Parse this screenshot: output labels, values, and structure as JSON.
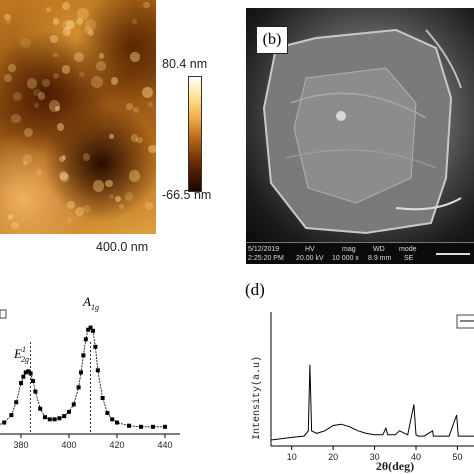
{
  "panel_a": {
    "scale_bar_label": "400.0 nm",
    "colorbar": {
      "max_label": "80.4 nm",
      "min_label": "-66.5 nm"
    }
  },
  "panel_b": {
    "label": "(b)",
    "info": {
      "date": "5/12/2019",
      "time": "2:25:20 PM",
      "hv_header": "HV",
      "hv_value": "20.00 kV",
      "mag_header": "mag",
      "mag_value": "10 000 x",
      "wd_header": "WD",
      "wd_value": "8.9 mm",
      "mode_header": "mode",
      "mode_value": "SE"
    }
  },
  "panel_c": {
    "peak_label_1": "E",
    "peak_label_1_sup": "1",
    "peak_label_1_sub": "2g",
    "peak_label_2": "A",
    "peak_label_2_sub": "1g",
    "x_tick_labels": [
      "380",
      "400",
      "420",
      "440"
    ]
  },
  "panel_d": {
    "label": "(d)",
    "ylabel": "Intensity(a.u)",
    "xlabel": "2θ(deg)",
    "x_tick_labels": [
      "10",
      "20",
      "30",
      "40",
      "50"
    ]
  },
  "chart_data": [
    {
      "type": "line",
      "panel": "c",
      "x": [
        370,
        373,
        376,
        378,
        380,
        381,
        382,
        383,
        384,
        385,
        386,
        388,
        390,
        392,
        394,
        396,
        398,
        400,
        402,
        404,
        405,
        406,
        407,
        408,
        409,
        410,
        411,
        412,
        414,
        416,
        418,
        420,
        425,
        430,
        435,
        440
      ],
      "values": [
        0.04,
        0.07,
        0.14,
        0.26,
        0.44,
        0.5,
        0.54,
        0.55,
        0.53,
        0.46,
        0.36,
        0.2,
        0.12,
        0.1,
        0.1,
        0.11,
        0.13,
        0.17,
        0.24,
        0.4,
        0.54,
        0.7,
        0.85,
        0.94,
        0.96,
        0.93,
        0.78,
        0.56,
        0.3,
        0.16,
        0.1,
        0.07,
        0.04,
        0.03,
        0.03,
        0.03
      ],
      "xlim": [
        370,
        445
      ],
      "ylim": [
        0,
        1.05
      ],
      "markers": [
        384,
        409
      ]
    },
    {
      "type": "line",
      "panel": "d",
      "x": [
        5,
        10,
        13,
        14,
        14.4,
        14.8,
        16,
        18,
        20,
        22,
        24,
        26,
        28,
        30,
        32,
        32.7,
        33.2,
        35,
        36,
        38,
        39.5,
        40,
        40.5,
        42,
        44,
        44.2,
        46,
        48,
        49.8,
        50.2,
        52,
        54
      ],
      "values": [
        0.03,
        0.05,
        0.06,
        0.1,
        0.6,
        0.1,
        0.08,
        0.1,
        0.14,
        0.15,
        0.13,
        0.1,
        0.08,
        0.07,
        0.07,
        0.12,
        0.07,
        0.07,
        0.1,
        0.07,
        0.3,
        0.07,
        0.06,
        0.06,
        0.1,
        0.06,
        0.06,
        0.06,
        0.22,
        0.06,
        0.06,
        0.06
      ],
      "xlim": [
        5,
        54
      ],
      "ylim": [
        0,
        1
      ]
    }
  ]
}
